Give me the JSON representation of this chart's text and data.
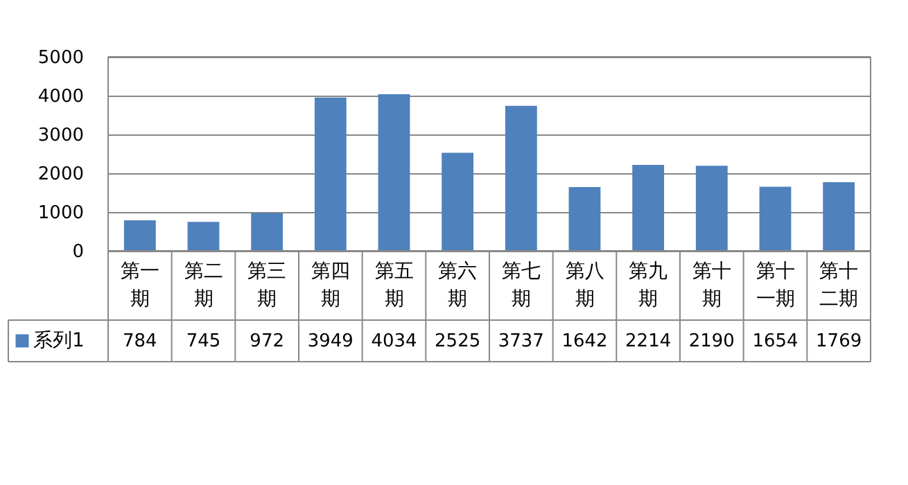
{
  "chart_data": {
    "type": "bar",
    "categories": [
      "第一期",
      "第二期",
      "第三期",
      "第四期",
      "第五期",
      "第六期",
      "第七期",
      "第八期",
      "第九期",
      "第十期",
      "第十一期",
      "第十二期"
    ],
    "series": [
      {
        "name": "系列1",
        "color": "#4f81bd",
        "values": [
          784,
          745,
          972,
          3949,
          4034,
          2525,
          3737,
          1642,
          2214,
          2190,
          1654,
          1769
        ]
      }
    ],
    "ylim": [
      0,
      5000
    ],
    "yticks": [
      0,
      1000,
      2000,
      3000,
      4000,
      5000
    ],
    "grid": "y",
    "data_labels": true,
    "legend": "bottom"
  }
}
